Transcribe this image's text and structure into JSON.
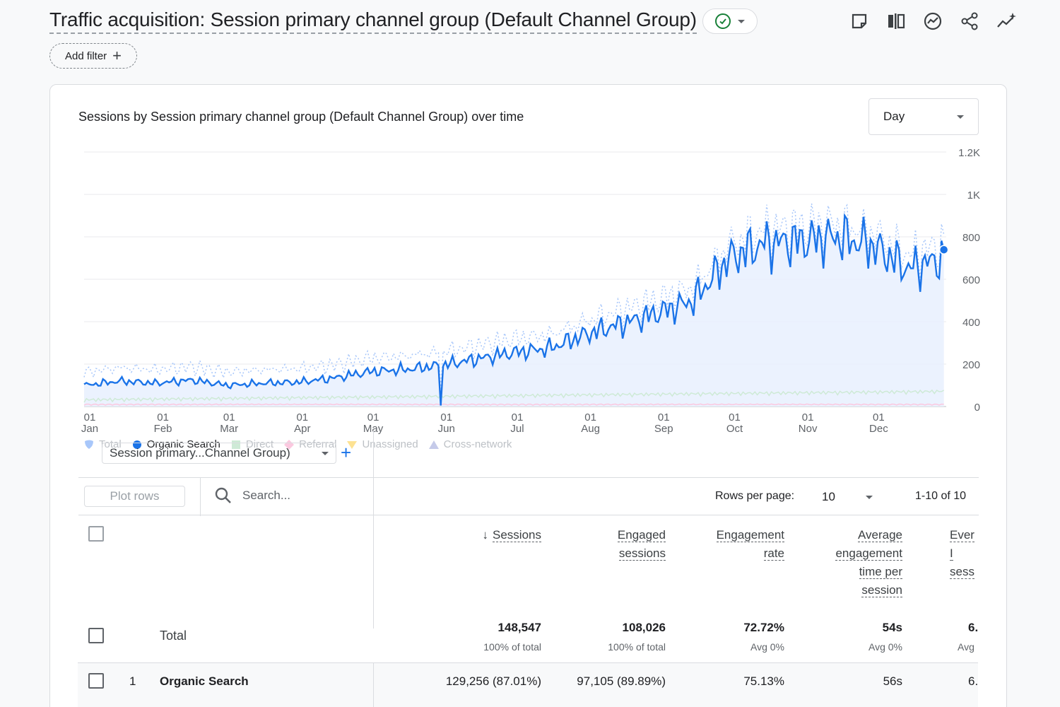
{
  "header": {
    "title": "Traffic acquisition: Session primary channel group (Default Channel Group)",
    "add_filter_label": "Add filter"
  },
  "chart_card": {
    "title": "Sessions by Session primary channel group (Default Channel Group) over time",
    "granularity": "Day"
  },
  "chart_data": {
    "type": "area",
    "series_name": "Organic Search",
    "y_ticks": [
      "1.2K",
      "1K",
      "800",
      "600",
      "400",
      "200",
      "0"
    ],
    "ylim": [
      0,
      1200
    ],
    "x_ticks": [
      {
        "day": "01",
        "month": "Jan"
      },
      {
        "day": "01",
        "month": "Feb"
      },
      {
        "day": "01",
        "month": "Mar"
      },
      {
        "day": "01",
        "month": "Apr"
      },
      {
        "day": "01",
        "month": "May"
      },
      {
        "day": "01",
        "month": "Jun"
      },
      {
        "day": "01",
        "month": "Jul"
      },
      {
        "day": "01",
        "month": "Aug"
      },
      {
        "day": "01",
        "month": "Sep"
      },
      {
        "day": "01",
        "month": "Oct"
      },
      {
        "day": "01",
        "month": "Nov"
      },
      {
        "day": "01",
        "month": "Dec"
      }
    ],
    "organic_search_weekly": [
      {
        "date": "Jan 01",
        "value": 100
      },
      {
        "date": "Jan 15",
        "value": 120
      },
      {
        "date": "Feb 01",
        "value": 110
      },
      {
        "date": "Feb 15",
        "value": 125
      },
      {
        "date": "Mar 01",
        "value": 100
      },
      {
        "date": "Mar 15",
        "value": 110
      },
      {
        "date": "Apr 01",
        "value": 115
      },
      {
        "date": "Apr 15",
        "value": 135
      },
      {
        "date": "May 01",
        "value": 165
      },
      {
        "date": "May 15",
        "value": 175
      },
      {
        "date": "Jun 01",
        "value": 195
      },
      {
        "date": "Jun 15",
        "value": 225
      },
      {
        "date": "Jul 01",
        "value": 255
      },
      {
        "date": "Jul 15",
        "value": 275
      },
      {
        "date": "Aug 01",
        "value": 340
      },
      {
        "date": "Aug 15",
        "value": 390
      },
      {
        "date": "Sep 01",
        "value": 440
      },
      {
        "date": "Sep 15",
        "value": 500
      },
      {
        "date": "Oct 01",
        "value": 700
      },
      {
        "date": "Oct 15",
        "value": 770
      },
      {
        "date": "Nov 01",
        "value": 780
      },
      {
        "date": "Nov 15",
        "value": 800
      },
      {
        "date": "Dec 01",
        "value": 760
      },
      {
        "date": "Dec 15",
        "value": 650
      },
      {
        "date": "Dec 31",
        "value": 700
      }
    ],
    "legend": [
      {
        "name": "Total",
        "color": "#a8c7fa",
        "active": false
      },
      {
        "name": "Organic Search",
        "color": "#1a73e8",
        "active": true
      },
      {
        "name": "Direct",
        "color": "#ceead6",
        "active": false
      },
      {
        "name": "Referral",
        "color": "#fbc8df",
        "active": false
      },
      {
        "name": "Unassigned",
        "color": "#fde293",
        "active": false
      },
      {
        "name": "Cross-network",
        "color": "#c5cae9",
        "active": false
      }
    ]
  },
  "table_controls": {
    "plot_rows_label": "Plot rows",
    "search_placeholder": "Search...",
    "rows_per_page_label": "Rows per page:",
    "rows_per_page_value": "10",
    "range_label": "1-10 of 10"
  },
  "table": {
    "dimension_label": "Session primary...Channel Group)",
    "columns": [
      {
        "key": "sessions",
        "label_lines": [
          "Sessions"
        ]
      },
      {
        "key": "engaged",
        "label_lines": [
          "Engaged",
          "sessions"
        ]
      },
      {
        "key": "rate",
        "label_lines": [
          "Engagement",
          "rate"
        ]
      },
      {
        "key": "avg_time",
        "label_lines": [
          "Average",
          "engagement",
          "time per",
          "session"
        ]
      },
      {
        "key": "events",
        "label_lines": [
          "Ever",
          "I",
          "sess"
        ]
      }
    ],
    "total": {
      "label": "Total",
      "sessions": "148,547",
      "sessions_sub": "100% of total",
      "engaged": "108,026",
      "engaged_sub": "100% of total",
      "rate": "72.72%",
      "rate_sub": "Avg 0%",
      "avg_time": "54s",
      "avg_time_sub": "Avg 0%",
      "events": "6.",
      "events_sub": "Avg"
    },
    "rows": [
      {
        "index": "1",
        "label": "Organic Search",
        "sessions": "129,256 (87.01%)",
        "engaged": "97,105 (89.89%)",
        "rate": "75.13%",
        "avg_time": "56s",
        "events": "6."
      }
    ]
  }
}
